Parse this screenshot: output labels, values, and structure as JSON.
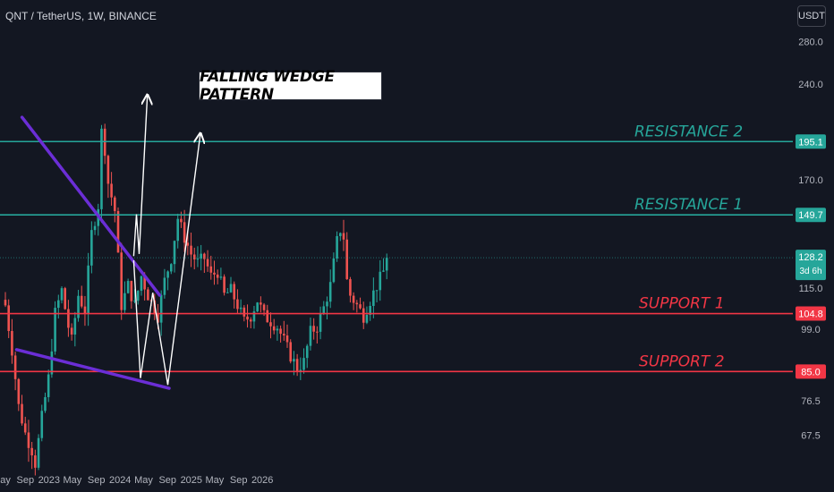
{
  "header": {
    "symbol": "QNT / TetherUS, 1W, BINANCE",
    "currency": "USDT"
  },
  "annotation": {
    "title": "FALLING WEDGE PATTERN"
  },
  "colors": {
    "background": "#131722",
    "up": "#26a69a",
    "down": "#ef5350",
    "resistance": "#26a69a",
    "support": "#f23645",
    "wedge": "#6b2ed6",
    "projection": "#ffffff"
  },
  "chart_data": {
    "type": "candlestick",
    "scale": "log",
    "ylim": [
      61,
      305
    ],
    "y_ticks": [
      "280.0",
      "240.0",
      "170.0",
      "115.0",
      "99.0",
      "76.5",
      "67.5"
    ],
    "x_ticks": [
      "May",
      "Sep",
      "2023",
      "May",
      "Sep",
      "2024",
      "May",
      "Sep",
      "2025",
      "May",
      "Sep",
      "2026"
    ],
    "levels": [
      {
        "name": "RESISTANCE 2",
        "value": 195.1,
        "label": "195.1",
        "kind": "resistance"
      },
      {
        "name": "RESISTANCE 1",
        "value": 149.7,
        "label": "149.7",
        "kind": "resistance"
      },
      {
        "name": "SUPPORT 1",
        "value": 104.8,
        "label": "104.8",
        "kind": "support"
      },
      {
        "name": "SUPPORT 2",
        "value": 85.0,
        "label": "85.0",
        "kind": "support"
      }
    ],
    "last_price": {
      "value": 128.2,
      "label": "128.2",
      "countdown": "3d 6h"
    },
    "wedge_lines": [
      {
        "from": [
          "2022-08-15",
          213
        ],
        "to": [
          "2024-07-22",
          112
        ]
      },
      {
        "from": [
          "2022-07-18",
          92
        ],
        "to": [
          "2024-09-09",
          80
        ]
      }
    ],
    "projections": [
      [
        [
          "2024-03-11",
          129
        ],
        [
          "2024-03-25",
          150
        ],
        [
          "2024-04-08",
          130
        ],
        [
          "2024-05-20",
          231
        ]
      ],
      [
        [
          "2024-03-11",
          127
        ],
        [
          "2024-04-15",
          83
        ],
        [
          "2024-06-17",
          113
        ],
        [
          "2024-09-02",
          81
        ],
        [
          "2025-02-17",
          201
        ]
      ]
    ]
  }
}
